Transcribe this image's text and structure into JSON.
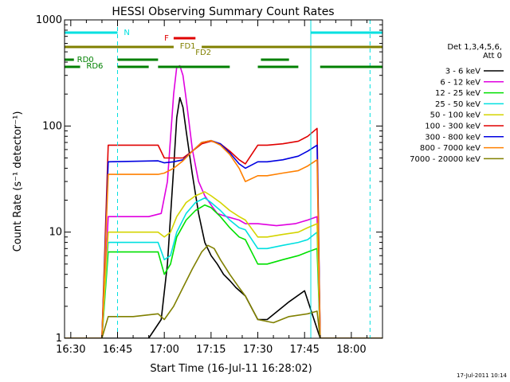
{
  "footer_timestamp": "17-Jul-2011 10:14",
  "chart_data": {
    "type": "line",
    "title": "HESSI Observing Summary Count Rates",
    "xlabel": "Start Time (16-Jul-11 16:28:02)",
    "ylabel": "Count Rate (s⁻¹ detector⁻¹)",
    "y_scale": "log",
    "ylim": [
      1,
      1000
    ],
    "xlim": [
      "16:28",
      "18:10"
    ],
    "x_ticks": [
      "16:30",
      "16:45",
      "17:00",
      "17:15",
      "17:30",
      "17:45",
      "18:00"
    ],
    "y_ticks": [
      "1",
      "10",
      "100",
      "1000"
    ],
    "grid": false,
    "legend": {
      "placement": "right",
      "header": [
        "Det 1,3,4,5,6,",
        "Att 0"
      ]
    },
    "series": [
      {
        "name": "3 - 6 keV",
        "color": "#000000",
        "points": [
          [
            "16:28",
            1
          ],
          [
            "16:40",
            1
          ],
          [
            "16:47",
            1
          ],
          [
            "16:55",
            1
          ],
          [
            "16:59",
            1.5
          ],
          [
            "17:01",
            5
          ],
          [
            "17:03",
            40
          ],
          [
            "17:04",
            120
          ],
          [
            "17:05",
            185
          ],
          [
            "17:06",
            150
          ],
          [
            "17:07",
            90
          ],
          [
            "17:09",
            35
          ],
          [
            "17:11",
            15
          ],
          [
            "17:13",
            8
          ],
          [
            "17:15",
            6
          ],
          [
            "17:17",
            5
          ],
          [
            "17:19",
            4
          ],
          [
            "17:21",
            3.5
          ],
          [
            "17:23",
            3
          ],
          [
            "17:26",
            2.5
          ],
          [
            "17:30",
            1.5
          ],
          [
            "17:33",
            1.5
          ],
          [
            "17:40",
            2.2
          ],
          [
            "17:45",
            2.8
          ],
          [
            "17:50",
            1
          ],
          [
            "18:10",
            1
          ]
        ]
      },
      {
        "name": "6 - 12 keV",
        "color": "#e000e0",
        "points": [
          [
            "16:28",
            1
          ],
          [
            "16:40",
            1
          ],
          [
            "16:42",
            14
          ],
          [
            "16:55",
            14
          ],
          [
            "16:59",
            15
          ],
          [
            "17:01",
            30
          ],
          [
            "17:03",
            200
          ],
          [
            "17:04",
            360
          ],
          [
            "17:05",
            370
          ],
          [
            "17:06",
            300
          ],
          [
            "17:07",
            180
          ],
          [
            "17:09",
            60
          ],
          [
            "17:11",
            30
          ],
          [
            "17:13",
            22
          ],
          [
            "17:15",
            18
          ],
          [
            "17:17",
            15
          ],
          [
            "17:20",
            14
          ],
          [
            "17:24",
            13
          ],
          [
            "17:26",
            12
          ],
          [
            "17:30",
            12
          ],
          [
            "17:36",
            11.5
          ],
          [
            "17:42",
            12
          ],
          [
            "17:46",
            13
          ],
          [
            "17:49",
            14
          ],
          [
            "17:50",
            1
          ],
          [
            "18:10",
            1
          ]
        ]
      },
      {
        "name": "12 - 25 keV",
        "color": "#00e000",
        "points": [
          [
            "16:28",
            1
          ],
          [
            "16:40",
            1
          ],
          [
            "16:42",
            6.5
          ],
          [
            "16:58",
            6.5
          ],
          [
            "17:00",
            4
          ],
          [
            "17:02",
            5
          ],
          [
            "17:04",
            9
          ],
          [
            "17:07",
            13
          ],
          [
            "17:10",
            16
          ],
          [
            "17:13",
            18
          ],
          [
            "17:15",
            17
          ],
          [
            "17:18",
            14
          ],
          [
            "17:21",
            11
          ],
          [
            "17:24",
            9
          ],
          [
            "17:26",
            8.5
          ],
          [
            "17:30",
            5
          ],
          [
            "17:33",
            5
          ],
          [
            "17:38",
            5.5
          ],
          [
            "17:43",
            6
          ],
          [
            "17:46",
            6.5
          ],
          [
            "17:49",
            7
          ],
          [
            "17:50",
            1
          ],
          [
            "18:10",
            1
          ]
        ]
      },
      {
        "name": "25 - 50 keV",
        "color": "#00e0e0",
        "points": [
          [
            "16:28",
            1
          ],
          [
            "16:40",
            1
          ],
          [
            "16:42",
            8
          ],
          [
            "16:58",
            8
          ],
          [
            "17:00",
            5.5
          ],
          [
            "17:02",
            6
          ],
          [
            "17:04",
            10
          ],
          [
            "17:07",
            15
          ],
          [
            "17:10",
            19
          ],
          [
            "17:13",
            21
          ],
          [
            "17:15",
            19
          ],
          [
            "17:18",
            16
          ],
          [
            "17:21",
            13
          ],
          [
            "17:24",
            11
          ],
          [
            "17:26",
            10.5
          ],
          [
            "17:30",
            7
          ],
          [
            "17:33",
            7
          ],
          [
            "17:38",
            7.5
          ],
          [
            "17:43",
            8
          ],
          [
            "17:46",
            8.5
          ],
          [
            "17:49",
            10
          ],
          [
            "17:50",
            1
          ],
          [
            "18:10",
            1
          ]
        ]
      },
      {
        "name": "50 - 100 keV",
        "color": "#d4d400",
        "points": [
          [
            "16:28",
            1
          ],
          [
            "16:40",
            1
          ],
          [
            "16:42",
            10
          ],
          [
            "16:58",
            10
          ],
          [
            "17:00",
            9
          ],
          [
            "17:02",
            10
          ],
          [
            "17:04",
            14
          ],
          [
            "17:07",
            19
          ],
          [
            "17:10",
            22
          ],
          [
            "17:13",
            24
          ],
          [
            "17:15",
            22
          ],
          [
            "17:18",
            19
          ],
          [
            "17:21",
            16
          ],
          [
            "17:24",
            14
          ],
          [
            "17:26",
            13
          ],
          [
            "17:30",
            9
          ],
          [
            "17:33",
            9
          ],
          [
            "17:38",
            9.5
          ],
          [
            "17:43",
            10
          ],
          [
            "17:46",
            11
          ],
          [
            "17:49",
            12
          ],
          [
            "17:50",
            1
          ],
          [
            "18:10",
            1
          ]
        ]
      },
      {
        "name": "100 - 300 keV",
        "color": "#e00000",
        "points": [
          [
            "16:28",
            1
          ],
          [
            "16:40",
            1
          ],
          [
            "16:42",
            66
          ],
          [
            "16:58",
            66
          ],
          [
            "17:00",
            50
          ],
          [
            "17:03",
            50
          ],
          [
            "17:06",
            50
          ],
          [
            "17:09",
            58
          ],
          [
            "17:12",
            68
          ],
          [
            "17:15",
            72
          ],
          [
            "17:18",
            68
          ],
          [
            "17:21",
            58
          ],
          [
            "17:24",
            48
          ],
          [
            "17:26",
            44
          ],
          [
            "17:30",
            66
          ],
          [
            "17:33",
            66
          ],
          [
            "17:38",
            68
          ],
          [
            "17:43",
            72
          ],
          [
            "17:46",
            80
          ],
          [
            "17:49",
            95
          ],
          [
            "17:50",
            1
          ],
          [
            "18:10",
            1
          ]
        ]
      },
      {
        "name": "300 - 800 keV",
        "color": "#0000e0",
        "points": [
          [
            "16:28",
            1
          ],
          [
            "16:40",
            1
          ],
          [
            "16:42",
            46
          ],
          [
            "16:58",
            47
          ],
          [
            "17:00",
            45
          ],
          [
            "17:03",
            46
          ],
          [
            "17:06",
            48
          ],
          [
            "17:09",
            58
          ],
          [
            "17:12",
            70
          ],
          [
            "17:15",
            73
          ],
          [
            "17:18",
            68
          ],
          [
            "17:21",
            56
          ],
          [
            "17:24",
            44
          ],
          [
            "17:26",
            40
          ],
          [
            "17:30",
            46
          ],
          [
            "17:33",
            46
          ],
          [
            "17:38",
            48
          ],
          [
            "17:43",
            52
          ],
          [
            "17:46",
            58
          ],
          [
            "17:49",
            66
          ],
          [
            "17:50",
            1
          ],
          [
            "18:10",
            1
          ]
        ]
      },
      {
        "name": "800 - 7000 keV",
        "color": "#ff8000",
        "points": [
          [
            "16:28",
            1
          ],
          [
            "16:40",
            1
          ],
          [
            "16:42",
            35
          ],
          [
            "16:58",
            35
          ],
          [
            "17:00",
            36
          ],
          [
            "17:03",
            40
          ],
          [
            "17:06",
            47
          ],
          [
            "17:09",
            58
          ],
          [
            "17:12",
            70
          ],
          [
            "17:15",
            73
          ],
          [
            "17:18",
            66
          ],
          [
            "17:21",
            54
          ],
          [
            "17:24",
            40
          ],
          [
            "17:26",
            30
          ],
          [
            "17:30",
            34
          ],
          [
            "17:33",
            34
          ],
          [
            "17:38",
            36
          ],
          [
            "17:43",
            38
          ],
          [
            "17:46",
            42
          ],
          [
            "17:49",
            48
          ],
          [
            "17:50",
            1
          ],
          [
            "18:10",
            1
          ]
        ]
      },
      {
        "name": "7000 - 20000 keV",
        "color": "#808000",
        "points": [
          [
            "16:28",
            1
          ],
          [
            "16:40",
            1
          ],
          [
            "16:42",
            1.6
          ],
          [
            "16:50",
            1.6
          ],
          [
            "16:58",
            1.7
          ],
          [
            "17:00",
            1.5
          ],
          [
            "17:03",
            2
          ],
          [
            "17:06",
            3
          ],
          [
            "17:09",
            4.5
          ],
          [
            "17:12",
            6.5
          ],
          [
            "17:14",
            7.5
          ],
          [
            "17:16",
            7
          ],
          [
            "17:18",
            5.5
          ],
          [
            "17:21",
            4
          ],
          [
            "17:24",
            3
          ],
          [
            "17:26",
            2.5
          ],
          [
            "17:30",
            1.5
          ],
          [
            "17:35",
            1.4
          ],
          [
            "17:40",
            1.6
          ],
          [
            "17:46",
            1.7
          ],
          [
            "17:49",
            1.8
          ],
          [
            "17:50",
            1
          ],
          [
            "18:10",
            1
          ]
        ]
      }
    ],
    "annotations": {
      "labels": [
        {
          "text": "N",
          "color": "#00e0e0"
        },
        {
          "text": "F",
          "color": "#e00000"
        },
        {
          "text": "FD1",
          "color": "#808000"
        },
        {
          "text": "FD2",
          "color": "#808000"
        },
        {
          "text": "RD0",
          "color": "#008000"
        },
        {
          "text": "RD6",
          "color": "#008000"
        }
      ],
      "intervals": [
        {
          "kind": "N",
          "color": "#00e0e0",
          "start": "16:28",
          "end": "16:45"
        },
        {
          "kind": "N",
          "color": "#00e0e0",
          "start": "17:47",
          "end": "18:10"
        },
        {
          "kind": "F",
          "color": "#e00000",
          "start": "17:03",
          "end": "17:10"
        },
        {
          "kind": "FD",
          "color": "#808000",
          "start": "16:28",
          "end": "17:03"
        },
        {
          "kind": "FD",
          "color": "#808000",
          "start": "17:12",
          "end": "18:10"
        },
        {
          "kind": "RD0",
          "color": "#008000",
          "start": "16:28",
          "end": "16:31"
        },
        {
          "kind": "RD0",
          "color": "#008000",
          "start": "16:45",
          "end": "16:58"
        },
        {
          "kind": "RD0",
          "color": "#008000",
          "start": "17:31",
          "end": "17:40"
        },
        {
          "kind": "RD6",
          "color": "#008000",
          "start": "16:28",
          "end": "16:33"
        },
        {
          "kind": "RD6",
          "color": "#008000",
          "start": "16:45",
          "end": "16:55"
        },
        {
          "kind": "RD6",
          "color": "#008000",
          "start": "16:58",
          "end": "17:21"
        },
        {
          "kind": "RD6",
          "color": "#008000",
          "start": "17:30",
          "end": "17:43"
        },
        {
          "kind": "RD6",
          "color": "#008000",
          "start": "17:50",
          "end": "18:10"
        }
      ],
      "vertical_lines": [
        {
          "time": "16:45",
          "color": "#00e0e0",
          "style": "dashed"
        },
        {
          "time": "17:47",
          "color": "#00e0e0",
          "style": "solid"
        },
        {
          "time": "18:06",
          "color": "#00e0e0",
          "style": "dashed"
        }
      ]
    }
  }
}
